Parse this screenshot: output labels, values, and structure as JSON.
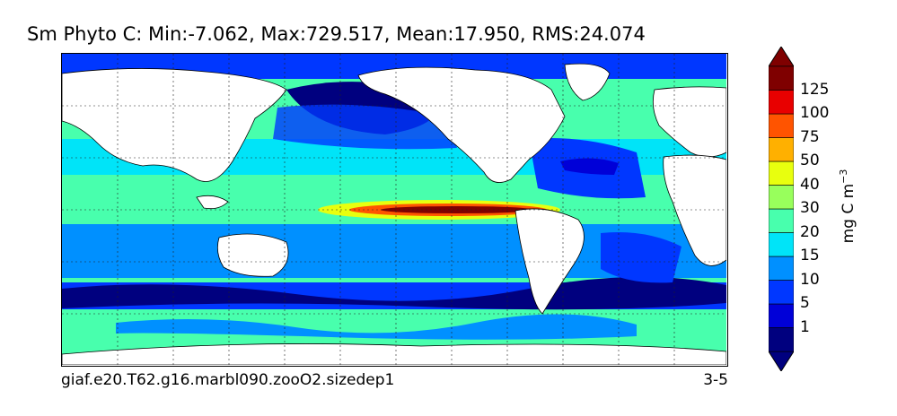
{
  "title": "Sm Phyto C: Min:-7.062, Max:729.517, Mean:17.950, RMS:24.074",
  "caption_left": "giaf.e20.T62.g16.marbl090.zooO2.sizedep1",
  "caption_right": "3-5",
  "units": {
    "base": "mg C m",
    "exponent": "−3"
  },
  "colorbar": {
    "levels": [
      "1",
      "5",
      "10",
      "15",
      "20",
      "30",
      "40",
      "50",
      "75",
      "100",
      "125"
    ],
    "colors": [
      "#00007f",
      "#0000d8",
      "#0037ff",
      "#0090ff",
      "#00e4f8",
      "#48ffad",
      "#98ff5c",
      "#e8ff0e",
      "#ffb000",
      "#ff5400",
      "#e80000",
      "#7f0000"
    ]
  },
  "map": {
    "projection": "global cylindrical",
    "graticule": "dashed",
    "land_color": "#ffffff"
  }
}
